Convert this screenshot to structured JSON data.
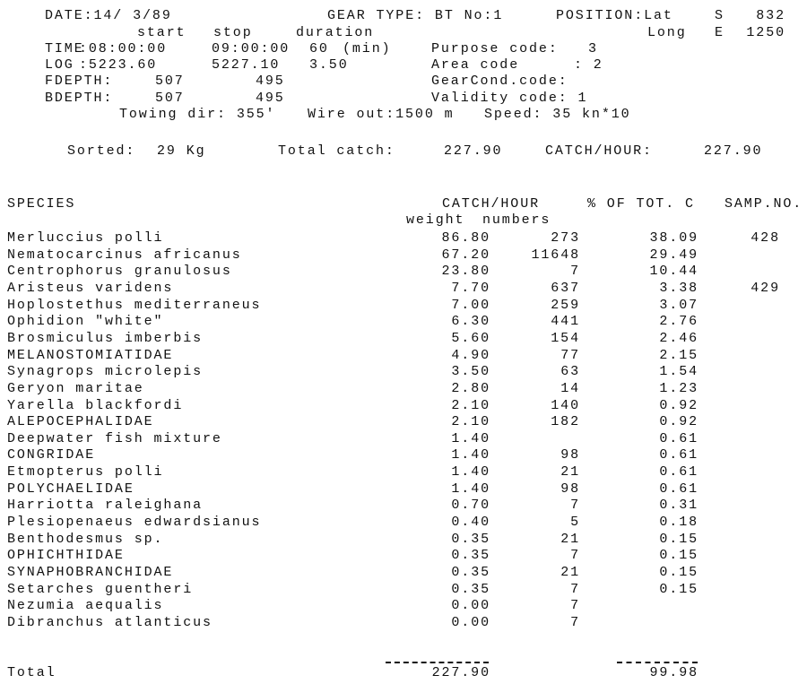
{
  "header": {
    "date": "DATE:14/ 3/89",
    "gear_type": "GEAR TYPE: BT No:1",
    "position_label": "POSITION:Lat",
    "lat_hemi": "S",
    "lat_value": "832",
    "long_label": "Long",
    "long_hemi": "E",
    "long_value": "1250",
    "col_start": "start",
    "col_stop": "stop",
    "col_duration": "duration",
    "time_label": "TIME",
    "time_start": ":08:00:00",
    "time_stop": "09:00:00",
    "time_duration": "60",
    "time_unit": "(min)",
    "purpose_label": "Purpose code:",
    "purpose_value": "3",
    "log_label": "LOG",
    "log_start": ":5223.60",
    "log_stop": "5227.10",
    "log_duration": "3.50",
    "area_label": "Area code",
    "area_value": ": 2",
    "fdepth_label": "FDEPTH:",
    "fdepth_start": "507",
    "fdepth_stop": "495",
    "gearcond_label": "GearCond.code:",
    "bdepth_label": "BDEPTH:",
    "bdepth_start": "507",
    "bdepth_stop": "495",
    "validity_label": "Validity code: 1",
    "towing": "Towing dir: 355'",
    "wire": "Wire out:1500 m",
    "speed": "Speed: 35 kn*10"
  },
  "summary": {
    "sorted_label": "Sorted:",
    "sorted_value": "29 Kg",
    "total_catch_label": "Total catch:",
    "total_catch_value": "227.90",
    "catch_hour_label": "CATCH/HOUR:",
    "catch_hour_value": "227.90"
  },
  "table": {
    "col_species": "SPECIES",
    "col_catch_hour": "CATCH/HOUR",
    "col_pct": "% OF TOT. C",
    "col_samp": "SAMP.NO.",
    "sub_weight": "weight",
    "sub_numbers": "numbers",
    "rows": [
      [
        "Merluccius polli",
        "86.80",
        "273",
        "38.09",
        "428"
      ],
      [
        "Nematocarcinus africanus",
        "67.20",
        "11648",
        "29.49",
        ""
      ],
      [
        "Centrophorus granulosus",
        "23.80",
        "7",
        "10.44",
        ""
      ],
      [
        "Aristeus varidens",
        "7.70",
        "637",
        "3.38",
        "429"
      ],
      [
        "Hoplostethus mediterraneus",
        "7.00",
        "259",
        "3.07",
        ""
      ],
      [
        "Ophidion \"white\"",
        "6.30",
        "441",
        "2.76",
        ""
      ],
      [
        "Brosmiculus imberbis",
        "5.60",
        "154",
        "2.46",
        ""
      ],
      [
        "MELANOSTOMIATIDAE",
        "4.90",
        "77",
        "2.15",
        ""
      ],
      [
        "Synagrops microlepis",
        "3.50",
        "63",
        "1.54",
        ""
      ],
      [
        "Geryon maritae",
        "2.80",
        "14",
        "1.23",
        ""
      ],
      [
        "Yarella blackfordi",
        "2.10",
        "140",
        "0.92",
        ""
      ],
      [
        "ALEPOCEPHALIDAE",
        "2.10",
        "182",
        "0.92",
        ""
      ],
      [
        "Deepwater fish mixture",
        "1.40",
        "",
        "0.61",
        ""
      ],
      [
        "CONGRIDAE",
        "1.40",
        "98",
        "0.61",
        ""
      ],
      [
        "Etmopterus polli",
        "1.40",
        "21",
        "0.61",
        ""
      ],
      [
        "POLYCHAELIDAE",
        "1.40",
        "98",
        "0.61",
        ""
      ],
      [
        "Harriotta raleighana",
        "0.70",
        "7",
        "0.31",
        ""
      ],
      [
        "Plesiopenaeus edwardsianus",
        "0.40",
        "5",
        "0.18",
        ""
      ],
      [
        "Benthodesmus sp.",
        "0.35",
        "21",
        "0.15",
        ""
      ],
      [
        "OPHICHTHIDAE",
        "0.35",
        "7",
        "0.15",
        ""
      ],
      [
        "SYNAPHOBRANCHIDAE",
        "0.35",
        "21",
        "0.15",
        ""
      ],
      [
        "Setarches guentheri",
        "0.35",
        "7",
        "0.15",
        ""
      ],
      [
        "Nezumia aequalis",
        "0.00",
        "7",
        "",
        ""
      ],
      [
        "Dibranchus atlanticus",
        "0.00",
        "7",
        "",
        ""
      ]
    ],
    "total_label": "Total",
    "total_weight": "227.90",
    "total_pct": "99.98"
  }
}
